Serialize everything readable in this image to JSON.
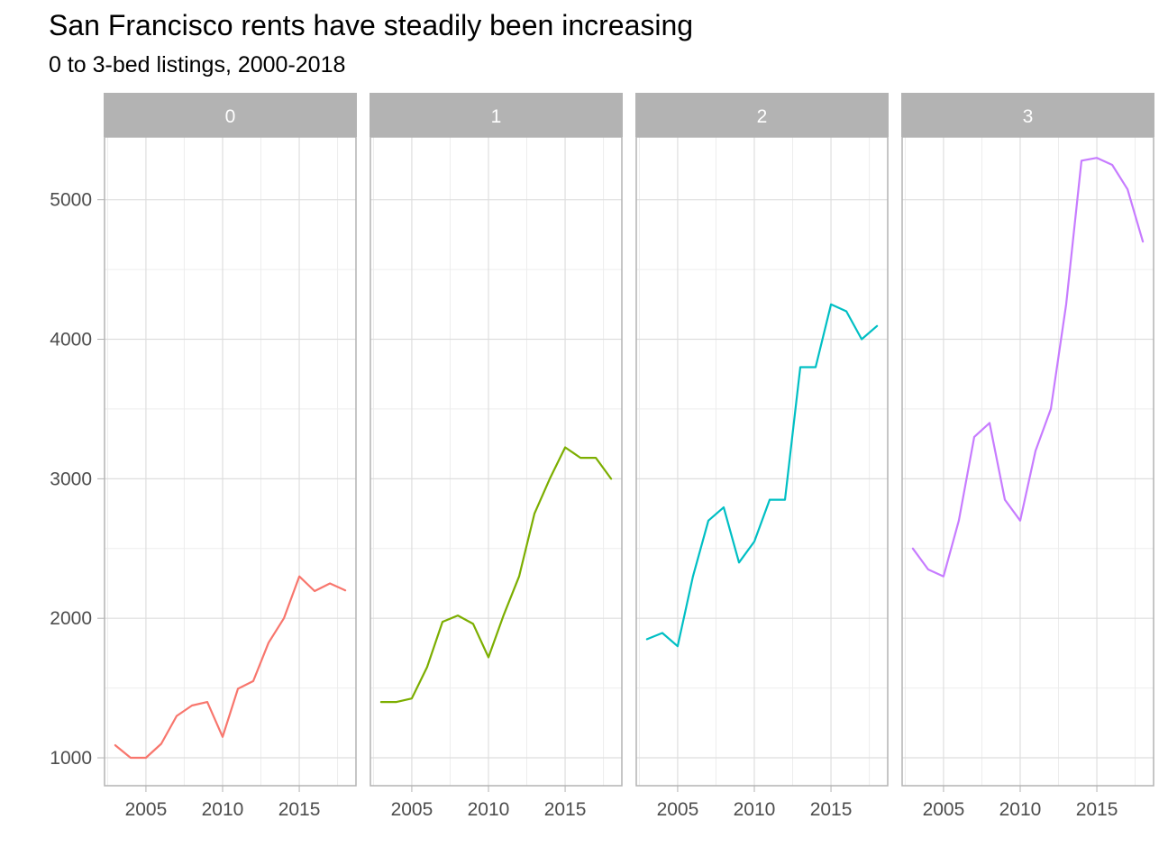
{
  "chart_data": {
    "type": "line",
    "title": "San Francisco rents have steadily been increasing",
    "subtitle": "0 to 3-bed listings, 2000-2018",
    "xlabel": "",
    "ylabel": "",
    "xlim": [
      2002.3,
      2018.7
    ],
    "ylim": [
      800,
      5450
    ],
    "x_ticks": [
      2005,
      2010,
      2015
    ],
    "y_ticks": [
      1000,
      2000,
      3000,
      4000,
      5000
    ],
    "x_tick_labels": [
      "2005",
      "2010",
      "2015"
    ],
    "y_tick_labels": [
      "1000",
      "2000",
      "3000",
      "4000",
      "5000"
    ],
    "grid": true,
    "legend": "none",
    "x": [
      2003,
      2004,
      2005,
      2006,
      2007,
      2008,
      2009,
      2010,
      2011,
      2012,
      2013,
      2014,
      2015,
      2016,
      2017,
      2018
    ],
    "panels": [
      {
        "label": "0",
        "color": "#F8766D",
        "values": [
          1090,
          1000,
          1000,
          1100,
          1300,
          1375,
          1400,
          1150,
          1495,
          1550,
          1825,
          2000,
          2300,
          2195,
          2250,
          2200
        ]
      },
      {
        "label": "1",
        "color": "#7CAE00",
        "values": [
          1400,
          1400,
          1425,
          1650,
          1975,
          2020,
          1960,
          1720,
          2025,
          2300,
          2750,
          3000,
          3225,
          3150,
          3150,
          3000
        ]
      },
      {
        "label": "2",
        "color": "#00BFC4",
        "values": [
          1850,
          1895,
          1800,
          2300,
          2700,
          2795,
          2400,
          2550,
          2850,
          2850,
          3800,
          3800,
          4250,
          4200,
          4000,
          4095
        ]
      },
      {
        "label": "3",
        "color": "#C77CFF",
        "values": [
          2500,
          2350,
          2300,
          2700,
          3300,
          3400,
          2850,
          2700,
          3200,
          3500,
          4250,
          5280,
          5300,
          5250,
          5075,
          4700
        ]
      }
    ]
  }
}
